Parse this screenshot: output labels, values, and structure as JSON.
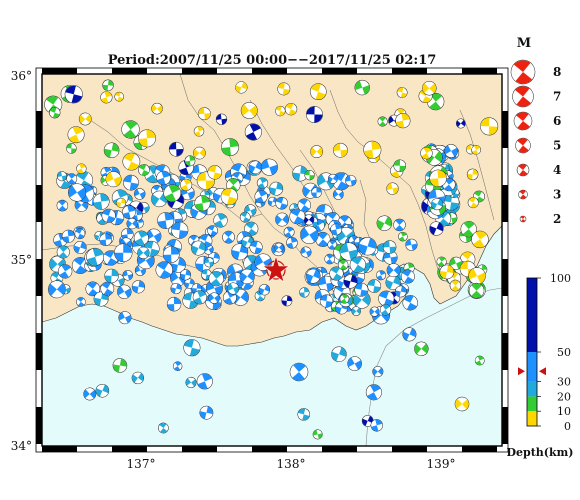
{
  "title": "Period:2007/11/25 00:00−−2017/11/25 02:17",
  "lat_labels": [
    "36°",
    "35°",
    "34°"
  ],
  "lon_labels": [
    "137°",
    "138°",
    "139°"
  ],
  "extent": {
    "lon_min": 136.35,
    "lon_max": 139.4,
    "lat_min": 34.0,
    "lat_max": 36.0
  },
  "magnitude_legend": {
    "title": "M",
    "values": [
      "8",
      "7",
      "6",
      "5",
      "4",
      "3",
      "2"
    ]
  },
  "depth_legend": {
    "title": "Depth(km)",
    "ticks": [
      "100",
      "50",
      "30",
      "20",
      "10",
      "0"
    ],
    "classes": [
      {
        "from": 0,
        "to": 10,
        "color": "#ffd700"
      },
      {
        "from": 10,
        "to": 20,
        "color": "#33cc33"
      },
      {
        "from": 20,
        "to": 30,
        "color": "#22aadd"
      },
      {
        "from": 30,
        "to": 50,
        "color": "#1e90ff"
      },
      {
        "from": 50,
        "to": 100,
        "color": "#0010aa"
      }
    ],
    "marker_depth_km": 37
  },
  "colors": {
    "land": "#f8e6c5",
    "sea": "#e4fbfb",
    "frame": "#000000",
    "magnitude_mech": "#ee2211",
    "marker": "#cc1111"
  },
  "mainshock": {
    "lon": 137.88,
    "lat": 34.96,
    "icon": "red-star-marker"
  }
}
